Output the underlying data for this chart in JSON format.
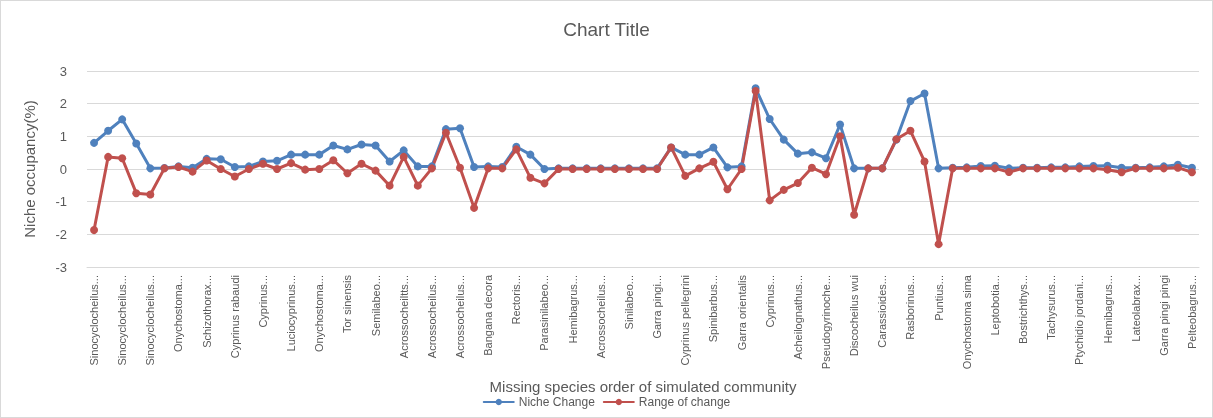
{
  "chart_data": {
    "type": "line",
    "title": "Chart Title",
    "xlabel": "Missing species order of simulated community",
    "ylabel": "Niche occupancy(%)",
    "categories": [
      "Sinocyclocheilus...",
      null,
      "Sinocyclocheilus...",
      null,
      "Sinocyclocheilus...",
      null,
      "Onychostoma...",
      null,
      "Schizothorax...",
      null,
      "Cyprinus rabaudi",
      null,
      "Cyprinus...",
      null,
      "Luciocyprinus...",
      null,
      "Onychostoma...",
      null,
      "Tor sinensis",
      null,
      "Semilabeo...",
      null,
      "Acrossocheiltts...",
      null,
      "Acrossocheilus...",
      null,
      "Acrossocheilus...",
      null,
      "Bangana decora",
      null,
      "Rectoris...",
      null,
      "Parasinilabeo...",
      null,
      "Hemibagrus...",
      null,
      "Acrossocheilus...",
      null,
      "Sinilabeo...",
      null,
      "Garra pingi...",
      null,
      "Cyprinus pellegrini",
      null,
      "Spinibarbus...",
      null,
      "Garra orientalis",
      null,
      "Cyprinus...",
      null,
      "Acheilognathus...",
      null,
      "Pseudogyrinoche...",
      null,
      "Discocheilus wui",
      null,
      "Carassioides...",
      null,
      "Rasborinus...",
      null,
      "Puntius...",
      null,
      "Onychostoma sima",
      null,
      "Leptobotia...",
      null,
      "Bostrichthys...",
      null,
      "Tachysurus...",
      null,
      "Ptychidio jordani...",
      null,
      "Hemibagrus...",
      null,
      "Lateolabrax...",
      null,
      "Garra pingi pingi",
      null,
      "Pelteobagrus..."
    ],
    "series": [
      {
        "name": "Niche Change",
        "color": "#4f81bd",
        "values": [
          0.8,
          1.17,
          1.52,
          0.78,
          0.02,
          0.03,
          0.08,
          0.04,
          0.31,
          0.3,
          0.06,
          0.08,
          0.23,
          0.25,
          0.44,
          0.44,
          0.44,
          0.72,
          0.6,
          0.75,
          0.72,
          0.23,
          0.57,
          0.08,
          0.08,
          1.22,
          1.25,
          0.06,
          0.08,
          0.06,
          0.68,
          0.44,
          0.0,
          0.02,
          0.02,
          0.02,
          0.02,
          0.02,
          0.02,
          0.02,
          0.02,
          0.66,
          0.44,
          0.44,
          0.66,
          0.05,
          0.08,
          2.47,
          1.53,
          0.9,
          0.47,
          0.51,
          0.33,
          1.36,
          0.02,
          0.02,
          0.02,
          0.9,
          2.08,
          2.31,
          0.02,
          0.04,
          0.05,
          0.09,
          0.1,
          0.02,
          0.04,
          0.04,
          0.05,
          0.05,
          0.08,
          0.09,
          0.1,
          0.04,
          0.04,
          0.05,
          0.08,
          0.13,
          0.04
        ]
      },
      {
        "name": "Range of change",
        "color": "#c0504d",
        "values": [
          -1.87,
          0.37,
          0.33,
          -0.74,
          -0.78,
          0.02,
          0.06,
          -0.08,
          0.26,
          0.0,
          -0.23,
          0.0,
          0.16,
          0.0,
          0.18,
          -0.02,
          0.0,
          0.27,
          -0.13,
          0.16,
          -0.05,
          -0.51,
          0.37,
          -0.51,
          0.02,
          1.11,
          0.04,
          -1.19,
          0.02,
          0.02,
          0.6,
          -0.27,
          -0.44,
          0.0,
          0.0,
          0.0,
          0.0,
          0.0,
          0.0,
          0.0,
          0.0,
          0.66,
          -0.21,
          0.02,
          0.22,
          -0.62,
          0.0,
          2.39,
          -0.96,
          -0.64,
          -0.43,
          0.04,
          -0.16,
          1.0,
          -1.4,
          0.02,
          0.02,
          0.91,
          1.17,
          0.23,
          -2.3,
          0.02,
          0.02,
          0.02,
          0.02,
          -0.09,
          0.02,
          0.02,
          0.02,
          0.02,
          0.02,
          0.02,
          -0.02,
          -0.1,
          0.02,
          0.02,
          0.02,
          0.04,
          -0.1
        ]
      }
    ],
    "ylim": [
      -3,
      3
    ],
    "yticks": [
      -3,
      -2,
      -1,
      0,
      1,
      2,
      3
    ],
    "grid": "y",
    "legend": "bottom",
    "marker": "circle",
    "line_style": "solid"
  }
}
